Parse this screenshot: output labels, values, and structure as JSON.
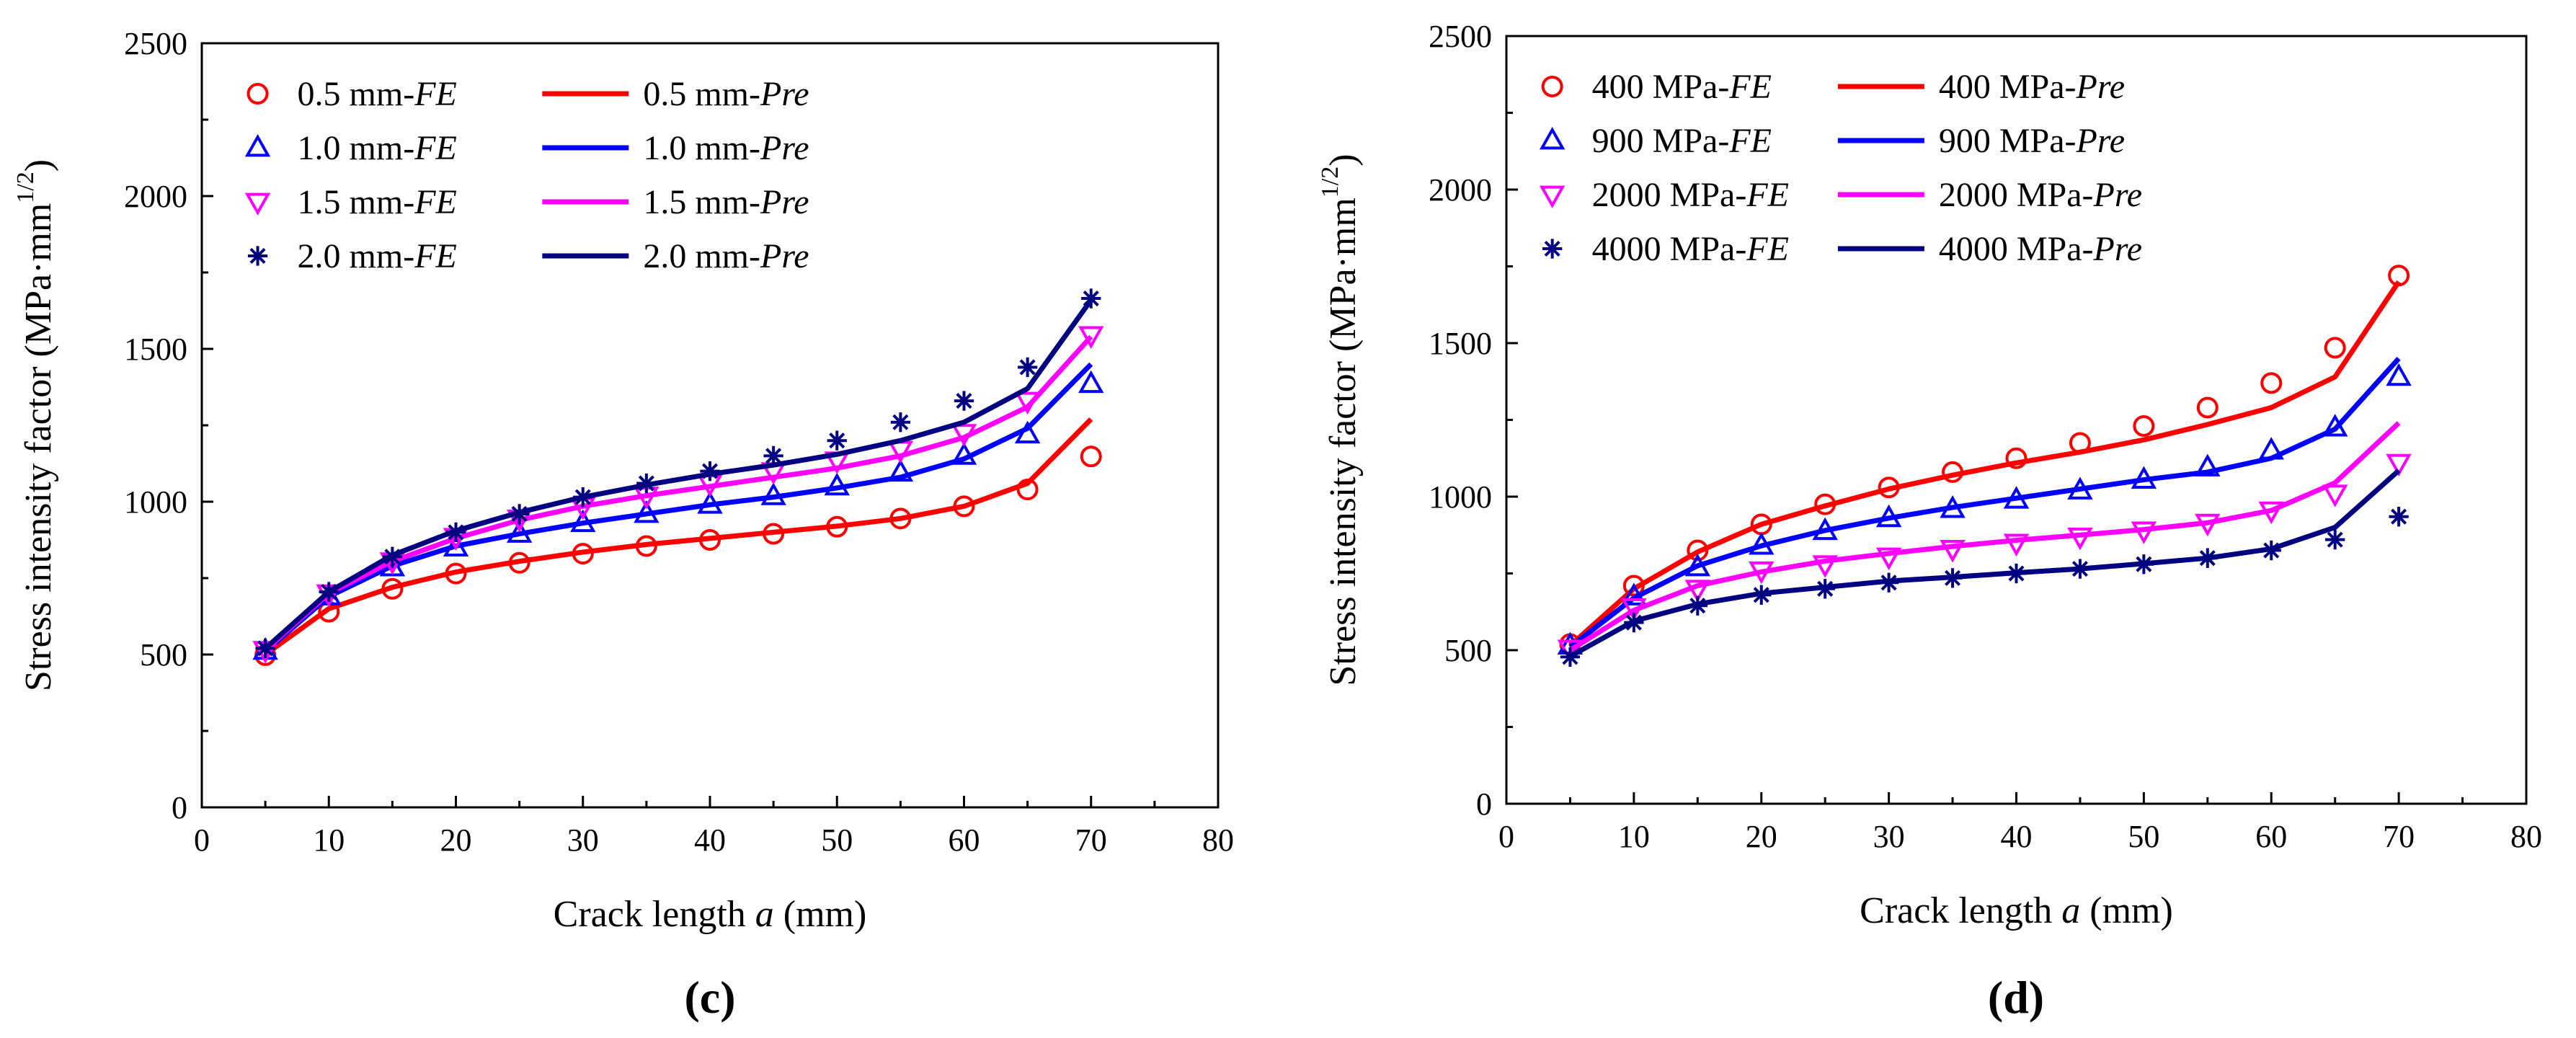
{
  "chart_data": [
    {
      "type": "line",
      "panel_label": "(c)",
      "xlabel_parts": [
        "Crack length ",
        "a",
        " (mm)"
      ],
      "ylabel_parts": [
        "Stress intensity factor (MPa·mm",
        "1/2",
        ")"
      ],
      "xlim": [
        0,
        80
      ],
      "ylim": [
        0,
        2500
      ],
      "xticks": [
        0,
        10,
        20,
        30,
        40,
        50,
        60,
        70,
        80
      ],
      "yticks": [
        0,
        500,
        1000,
        1500,
        2000,
        2500
      ],
      "x": [
        5,
        10,
        15,
        20,
        25,
        30,
        35,
        40,
        45,
        50,
        55,
        60,
        65,
        70
      ],
      "legend_position": "top-left",
      "series": [
        {
          "prefix": "0.5 mm-",
          "fe_suffix": "FE",
          "pre_suffix": "Pre",
          "marker": "circle",
          "color": "#ff0000",
          "fe": [
            498,
            640,
            715,
            765,
            800,
            830,
            855,
            875,
            895,
            918,
            945,
            985,
            1040,
            1148
          ],
          "pre": [
            500,
            650,
            720,
            770,
            805,
            835,
            860,
            880,
            900,
            920,
            945,
            985,
            1060,
            1270
          ]
        },
        {
          "prefix": "1.0 mm-",
          "fe_suffix": "FE",
          "pre_suffix": "Pre",
          "marker": "triangle-up",
          "color": "#0000ff",
          "fe": [
            512,
            690,
            785,
            850,
            895,
            930,
            960,
            990,
            1018,
            1050,
            1095,
            1150,
            1220,
            1385
          ],
          "pre": [
            510,
            690,
            790,
            855,
            895,
            930,
            960,
            990,
            1015,
            1045,
            1080,
            1140,
            1240,
            1450
          ]
        },
        {
          "prefix": "1.5 mm-",
          "fe_suffix": "FE",
          "pre_suffix": "Pre",
          "marker": "triangle-down",
          "color": "#ff00ff",
          "fe": [
            515,
            700,
            805,
            885,
            945,
            985,
            1020,
            1060,
            1100,
            1135,
            1170,
            1225,
            1330,
            1545
          ],
          "pre": [
            515,
            700,
            805,
            880,
            940,
            985,
            1020,
            1050,
            1080,
            1110,
            1150,
            1210,
            1310,
            1540
          ]
        },
        {
          "prefix": "2.0 mm-",
          "fe_suffix": "FE",
          "pre_suffix": "Pre",
          "marker": "star",
          "color": "#000080",
          "fe": [
            520,
            705,
            820,
            900,
            960,
            1015,
            1060,
            1100,
            1150,
            1200,
            1260,
            1330,
            1440,
            1665
          ],
          "pre": [
            520,
            705,
            825,
            905,
            965,
            1015,
            1055,
            1090,
            1120,
            1155,
            1200,
            1260,
            1370,
            1660
          ]
        }
      ]
    },
    {
      "type": "line",
      "panel_label": "(d)",
      "xlabel_parts": [
        "Crack length ",
        "a",
        " (mm)"
      ],
      "ylabel_parts": [
        "Stress intensity factor (MPa·mm",
        "1/2",
        ")"
      ],
      "xlim": [
        0,
        80
      ],
      "ylim": [
        0,
        2500
      ],
      "xticks": [
        0,
        10,
        20,
        30,
        40,
        50,
        60,
        70,
        80
      ],
      "yticks": [
        0,
        500,
        1000,
        1500,
        2000,
        2500
      ],
      "x": [
        5,
        10,
        15,
        20,
        25,
        30,
        35,
        40,
        45,
        50,
        55,
        60,
        65,
        70
      ],
      "legend_position": "top-left",
      "series": [
        {
          "prefix": "400 MPa-",
          "fe_suffix": "FE",
          "pre_suffix": "Pre",
          "marker": "circle",
          "color": "#ff0000",
          "fe": [
            520,
            710,
            825,
            910,
            975,
            1030,
            1080,
            1125,
            1175,
            1230,
            1290,
            1370,
            1485,
            1720
          ],
          "pre": [
            515,
            700,
            820,
            910,
            970,
            1025,
            1070,
            1110,
            1145,
            1185,
            1235,
            1290,
            1390,
            1700
          ]
        },
        {
          "prefix": "900 MPa-",
          "fe_suffix": "FE",
          "pre_suffix": "Pre",
          "marker": "triangle-up",
          "color": "#0000ff",
          "fe": [
            515,
            675,
            770,
            840,
            888,
            930,
            960,
            990,
            1020,
            1055,
            1095,
            1150,
            1225,
            1390
          ],
          "pre": [
            510,
            670,
            775,
            840,
            890,
            930,
            965,
            995,
            1025,
            1055,
            1080,
            1125,
            1220,
            1450
          ]
        },
        {
          "prefix": "2000 MPa-",
          "fe_suffix": "FE",
          "pre_suffix": "Pre",
          "marker": "triangle-down",
          "color": "#ff00ff",
          "fe": [
            505,
            640,
            700,
            760,
            780,
            805,
            830,
            850,
            870,
            890,
            915,
            955,
            1010,
            1110
          ],
          "pre": [
            500,
            630,
            710,
            755,
            790,
            815,
            838,
            858,
            875,
            893,
            915,
            955,
            1045,
            1240
          ]
        },
        {
          "prefix": "4000 MPa-",
          "fe_suffix": "FE",
          "pre_suffix": "Pre",
          "marker": "star",
          "color": "#000080",
          "fe": [
            478,
            590,
            645,
            680,
            700,
            720,
            735,
            750,
            765,
            780,
            800,
            825,
            860,
            935
          ],
          "pre": [
            480,
            595,
            650,
            685,
            705,
            725,
            738,
            752,
            765,
            782,
            800,
            830,
            900,
            1085
          ]
        }
      ]
    }
  ]
}
